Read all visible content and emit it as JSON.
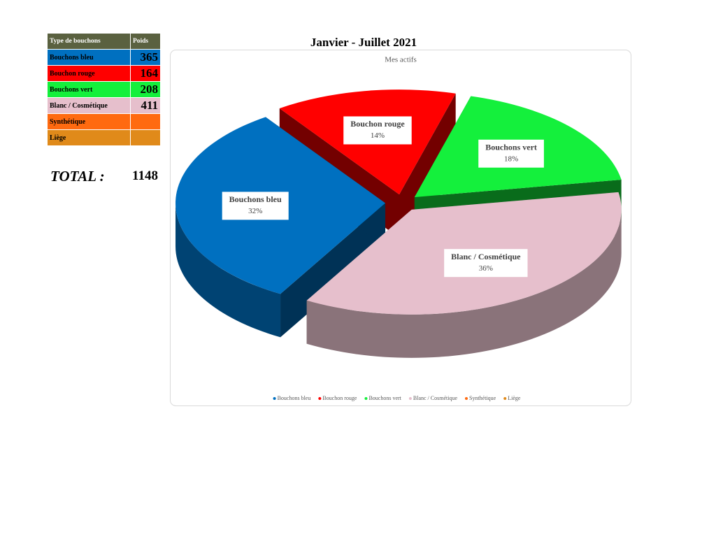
{
  "table": {
    "header": [
      "Type de bouchons",
      "Poids"
    ],
    "rows": [
      [
        "Bouchons bleu",
        365
      ],
      [
        "Bouchon rouge",
        164
      ],
      [
        "Bouchons vert",
        208
      ],
      [
        "Blanc / Cosmétique",
        411
      ],
      [
        "Synthétique"
      ],
      [
        "Liège"
      ]
    ]
  },
  "total": {
    "label": "TOTAL :",
    "value": 1148
  },
  "chart_data": {
    "type": "pie",
    "title": "Janvier - Juillet 2021",
    "subtitle": "Mes actifs",
    "categories": [
      "Bouchons bleu",
      "Bouchon rouge",
      "Bouchons vert",
      "Blanc / Cosmétique",
      "Synthétique",
      "Liège"
    ],
    "values": [
      32,
      14,
      18,
      36,
      null,
      null
    ],
    "value_labels": [
      "32%",
      "14%",
      "18%",
      "36%",
      null,
      null
    ],
    "colors": [
      "#0070c0",
      "#ff0000",
      "#14f03c",
      "#e6bfcc",
      "#ff6a10",
      "#e08a1a"
    ],
    "three_d": true,
    "exploded": true,
    "legend": "bottom"
  }
}
